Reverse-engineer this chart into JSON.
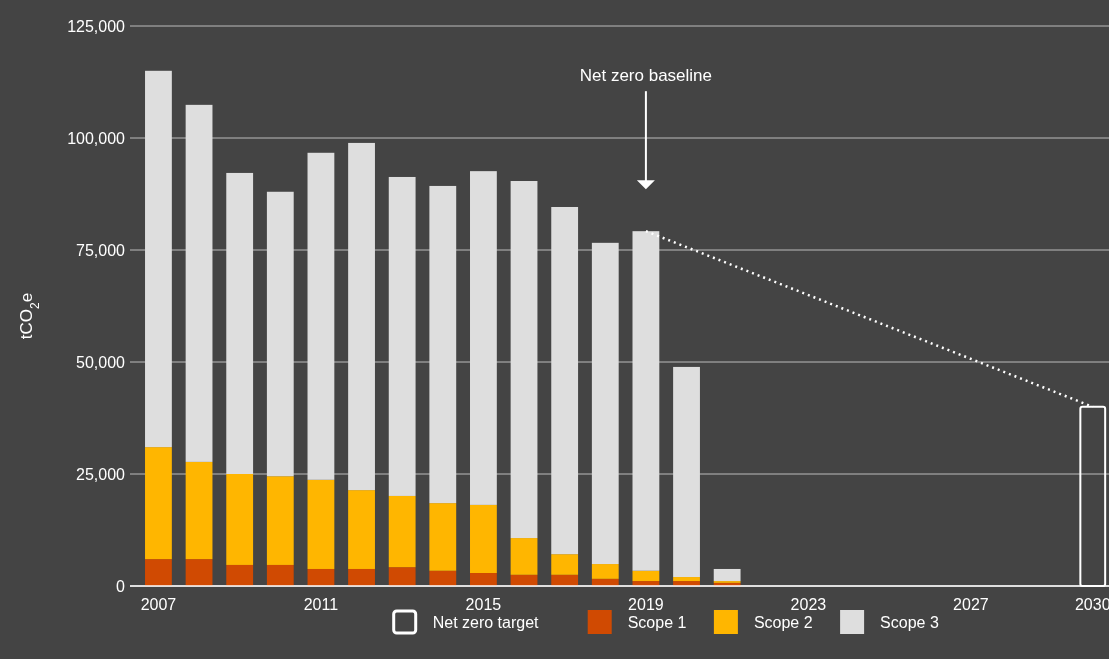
{
  "chart_data": {
    "type": "bar",
    "stacked": true,
    "ylabel": "tCO$_{2}$e",
    "x": [
      2007,
      2008,
      2009,
      2010,
      2011,
      2012,
      2013,
      2014,
      2015,
      2016,
      2017,
      2018,
      2019,
      2020,
      2021,
      2030
    ],
    "xlim": [
      2006.3,
      2030.4
    ],
    "xticks": [
      2007,
      2011,
      2015,
      2019,
      2023,
      2027,
      2030
    ],
    "ylim": [
      0,
      125000
    ],
    "yticks": [
      0,
      {
        "value": 25000,
        "label": "25,000"
      },
      {
        "value": 50000,
        "label": "50,000"
      },
      {
        "value": 75000,
        "label": "75,000"
      },
      {
        "value": 100000,
        "label": "100,000"
      },
      {
        "value": 125000,
        "label": "125,000"
      }
    ],
    "grid": "y",
    "legend": "bottom",
    "series": [
      {
        "name": "Net zero target",
        "color": "#ffffff",
        "line_style": "solid",
        "values": [
          null,
          null,
          null,
          null,
          null,
          null,
          null,
          null,
          null,
          null,
          null,
          null,
          null,
          null,
          null,
          40000
        ]
      },
      {
        "name": "Scope 1",
        "color": "#d04a02",
        "values": [
          6000,
          6000,
          4700,
          4700,
          3800,
          3800,
          4200,
          3400,
          2900,
          2500,
          2500,
          1600,
          1100,
          1100,
          700,
          null
        ]
      },
      {
        "name": "Scope 2",
        "color": "#ffb600",
        "values": [
          25000,
          21700,
          20300,
          19800,
          19900,
          17600,
          15900,
          15100,
          15200,
          8200,
          4600,
          3300,
          2300,
          900,
          400,
          null
        ]
      },
      {
        "name": "Scope 3",
        "color": "#dedede",
        "values": [
          84000,
          79700,
          67200,
          63500,
          73000,
          77500,
          71200,
          70800,
          74500,
          79700,
          77500,
          71700,
          75800,
          46900,
          2700,
          null
        ]
      },
      {
        "type": "line",
        "color": "#ffffff",
        "line_style": "dotted",
        "marker": "none",
        "x": [
          2019,
          2030
        ],
        "values": [
          79200,
          40000
        ]
      }
    ],
    "annotations": [
      "Net zero baseline"
    ]
  }
}
